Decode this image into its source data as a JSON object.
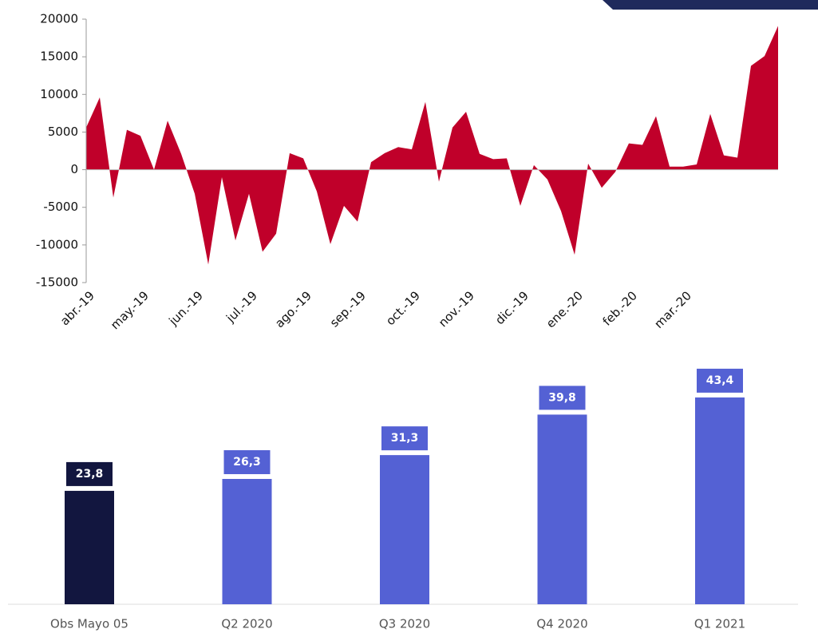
{
  "chart_data": [
    {
      "type": "area",
      "categories": [
        "abr.-19",
        null,
        null,
        null,
        "may.-19",
        null,
        null,
        null,
        "jun.-19",
        null,
        null,
        null,
        "jul.-19",
        null,
        null,
        null,
        "ago.-19",
        null,
        null,
        null,
        "sep.-19",
        null,
        null,
        null,
        "oct.-19",
        null,
        null,
        null,
        "nov.-19",
        null,
        null,
        null,
        "dic.-19",
        null,
        null,
        null,
        "ene.-20",
        null,
        null,
        null,
        "feb.-20",
        null,
        null,
        null,
        "mar.-20",
        null,
        null,
        null,
        null,
        null,
        null,
        null
      ],
      "values": [
        5600,
        9600,
        -3700,
        5300,
        4500,
        0,
        6500,
        2100,
        -3200,
        -12600,
        -1000,
        -9400,
        -3200,
        -10900,
        -8500,
        2200,
        1500,
        -2900,
        -9900,
        -4800,
        -6900,
        1000,
        2200,
        3000,
        2700,
        9000,
        -1600,
        5600,
        7700,
        2100,
        1400,
        1500,
        -4800,
        600,
        -1300,
        -5500,
        -11300,
        800,
        -2400,
        -300,
        3500,
        3300,
        7100,
        400,
        400,
        700,
        7400,
        1900,
        1600,
        13800,
        15100,
        19100
      ],
      "color": "#c0002a",
      "ylim": [
        -15000,
        20000
      ],
      "yticks": [
        -15000,
        -10000,
        -5000,
        0,
        5000,
        10000,
        15000,
        20000
      ]
    },
    {
      "type": "bar",
      "categories": [
        "Obs Mayo 05",
        "Q2 2020",
        "Q3 2020",
        "Q4 2020",
        "Q1 2021"
      ],
      "values": [
        23.8,
        26.3,
        31.3,
        39.8,
        43.4
      ],
      "value_labels": [
        "23,8",
        "26,3",
        "31,3",
        "39,8",
        "43,4"
      ],
      "colors": [
        "#12163f",
        "#5461d4",
        "#5461d4",
        "#5461d4",
        "#5461d4"
      ]
    }
  ]
}
